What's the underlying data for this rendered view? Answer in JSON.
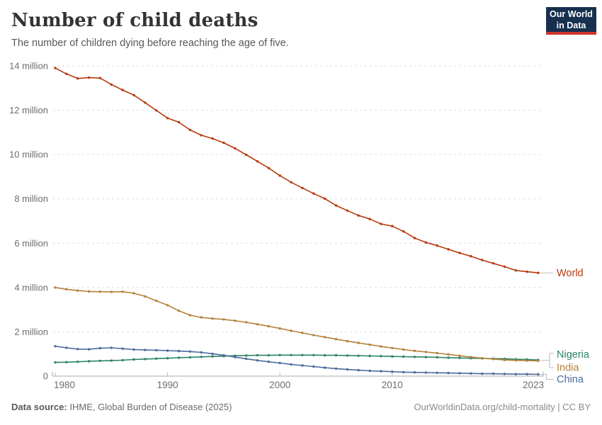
{
  "header": {
    "title": "Number of child deaths",
    "subtitle": "The number of children dying before reaching the age of five.",
    "logo_line1": "Our World",
    "logo_line2": "in Data"
  },
  "footer": {
    "source_label": "Data source:",
    "source": " IHME, Global Burden of Disease (2025)",
    "rights": "OurWorldinData.org/child-mortality | CC BY"
  },
  "chart_data": {
    "type": "line",
    "title": "Number of child deaths",
    "unit": "million",
    "x_start": 1980,
    "x_end": 2023,
    "x_ticks": [
      1980,
      1990,
      2000,
      2010,
      2023
    ],
    "y_ticks": [
      0,
      2,
      4,
      6,
      8,
      10,
      12,
      14
    ],
    "y_tick_suffix": " million",
    "ylim": [
      0,
      14
    ],
    "grid": "dashed-horizontal",
    "legend_position": "right-of-line-ends",
    "series": [
      {
        "name": "World",
        "color": "#b6390f",
        "values": [
          13.9,
          13.64,
          13.43,
          13.47,
          13.45,
          13.16,
          12.91,
          12.68,
          12.34,
          11.99,
          11.64,
          11.46,
          11.11,
          10.87,
          10.72,
          10.53,
          10.28,
          9.99,
          9.69,
          9.39,
          9.05,
          8.75,
          8.49,
          8.24,
          8.01,
          7.7,
          7.47,
          7.25,
          7.09,
          6.87,
          6.77,
          6.53,
          6.23,
          6.03,
          5.89,
          5.72,
          5.56,
          5.41,
          5.24,
          5.09,
          4.94,
          4.77,
          4.71,
          4.66
        ]
      },
      {
        "name": "Nigeria",
        "color": "#2c8465",
        "values": [
          0.62,
          0.63,
          0.65,
          0.67,
          0.69,
          0.7,
          0.72,
          0.75,
          0.77,
          0.79,
          0.81,
          0.83,
          0.85,
          0.87,
          0.89,
          0.9,
          0.92,
          0.93,
          0.94,
          0.94,
          0.95,
          0.95,
          0.95,
          0.95,
          0.94,
          0.94,
          0.93,
          0.92,
          0.91,
          0.9,
          0.89,
          0.88,
          0.87,
          0.86,
          0.85,
          0.83,
          0.82,
          0.81,
          0.8,
          0.79,
          0.78,
          0.76,
          0.75,
          0.73
        ]
      },
      {
        "name": "India",
        "color": "#b5823c",
        "values": [
          4.0,
          3.92,
          3.86,
          3.82,
          3.81,
          3.8,
          3.81,
          3.74,
          3.6,
          3.4,
          3.2,
          2.95,
          2.75,
          2.65,
          2.6,
          2.56,
          2.5,
          2.43,
          2.34,
          2.25,
          2.15,
          2.05,
          1.95,
          1.85,
          1.76,
          1.67,
          1.58,
          1.5,
          1.42,
          1.34,
          1.27,
          1.2,
          1.14,
          1.09,
          1.04,
          0.98,
          0.92,
          0.86,
          0.81,
          0.77,
          0.73,
          0.71,
          0.7,
          0.69
        ]
      },
      {
        "name": "China",
        "color": "#4c6a9c",
        "values": [
          1.35,
          1.28,
          1.22,
          1.21,
          1.26,
          1.28,
          1.24,
          1.2,
          1.18,
          1.17,
          1.15,
          1.13,
          1.11,
          1.07,
          1.01,
          0.94,
          0.86,
          0.78,
          0.71,
          0.65,
          0.59,
          0.53,
          0.48,
          0.43,
          0.38,
          0.34,
          0.3,
          0.27,
          0.24,
          0.22,
          0.2,
          0.18,
          0.17,
          0.16,
          0.15,
          0.14,
          0.13,
          0.12,
          0.11,
          0.11,
          0.1,
          0.09,
          0.09,
          0.08
        ]
      }
    ]
  }
}
